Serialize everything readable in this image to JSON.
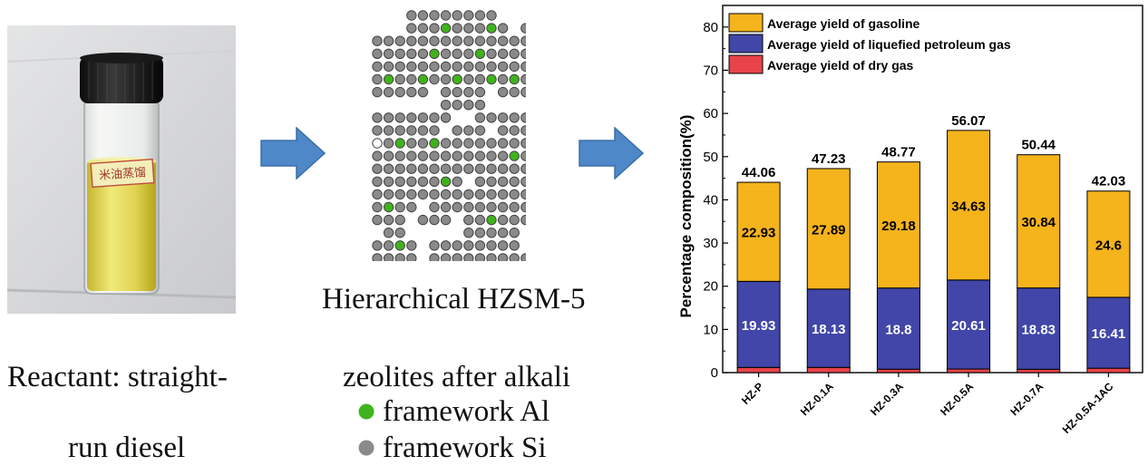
{
  "photo": {
    "label_text": "米油蒸馏"
  },
  "captions": {
    "reactant_line1": "Reactant: straight-",
    "reactant_line2": "run diesel",
    "zeolite_title": "Hierarchical HZSM-5",
    "zeolite_sub": "zeolites after alkali",
    "legend_al": "framework Al",
    "legend_si": "framework Si"
  },
  "colors": {
    "arrow": "#4e88c9",
    "si_atom": "#8a8a8a",
    "al_atom": "#3fb31c",
    "gasoline": "#f5b31c",
    "lpg": "#4146a8",
    "drygas": "#e8434a"
  },
  "icons": {
    "arrow1": "right-arrow-icon",
    "arrow2": "right-arrow-icon"
  },
  "chart_data": {
    "type": "bar",
    "stacked": true,
    "categories": [
      "HZ-P",
      "HZ-0.1A",
      "HZ-0.3A",
      "HZ-0.5A",
      "HZ-0.7A",
      "HZ-0.5A-1AC"
    ],
    "series": [
      {
        "name": "Average yield of dry gas",
        "values": [
          1.2,
          1.21,
          0.79,
          0.83,
          0.77,
          1.02
        ],
        "color": "#e8434a"
      },
      {
        "name": "Average yield of liquefied petroleum gas",
        "values": [
          19.93,
          18.13,
          18.8,
          20.61,
          18.83,
          16.41
        ],
        "color": "#4146a8"
      },
      {
        "name": "Average yield of gasoline",
        "values": [
          22.93,
          27.89,
          29.18,
          34.63,
          30.84,
          24.6
        ],
        "color": "#f5b31c"
      }
    ],
    "segment_labels": {
      "lpg": [
        "19.93",
        "18.13",
        "18.8",
        "20.61",
        "18.83",
        "16.41"
      ],
      "gasoline": [
        "22.93",
        "27.89",
        "29.18",
        "34.63",
        "30.84",
        "24.6"
      ]
    },
    "totals": [
      "44.06",
      "47.23",
      "48.77",
      "56.07",
      "50.44",
      "42.03"
    ],
    "total_values": [
      44.06,
      47.23,
      48.77,
      56.07,
      50.44,
      42.03
    ],
    "ylabel": "Percentage composition(%)",
    "xlabel": "",
    "ylim": [
      0,
      85
    ],
    "yticks": [
      0,
      10,
      20,
      30,
      40,
      50,
      60,
      70,
      80
    ],
    "legend": [
      "Average yield of gasoline",
      "Average yield of liquefied petroleum gas",
      "Average yield of dry gas"
    ],
    "legend_position": "top-left",
    "grid": false
  }
}
